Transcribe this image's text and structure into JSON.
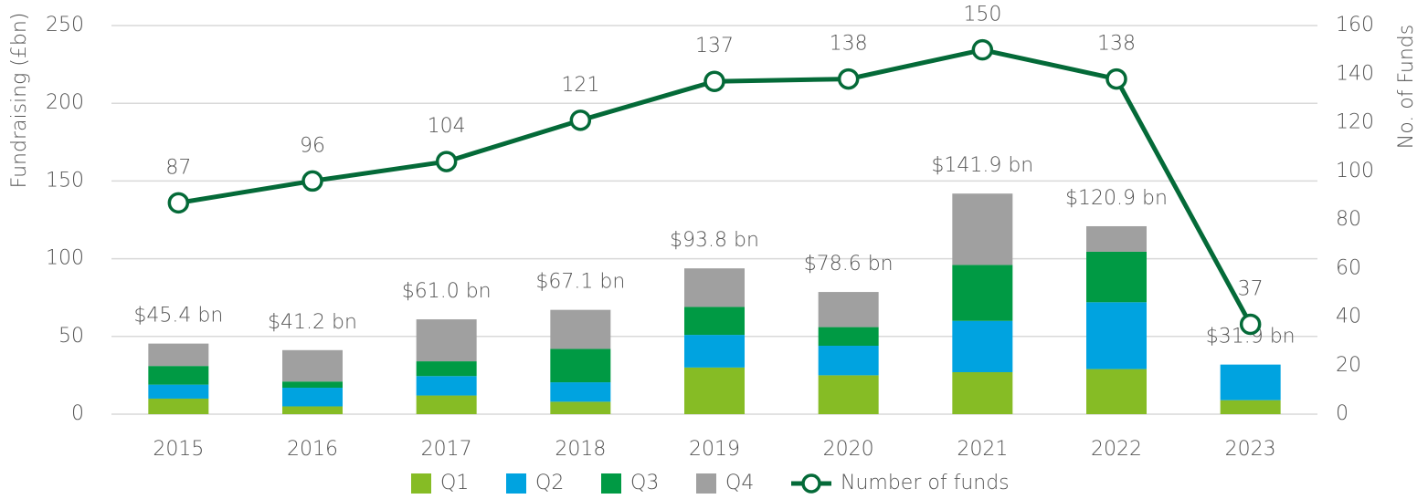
{
  "chart_data": {
    "type": "bar",
    "y_label": "Fundraising (£bn)",
    "y2_label": "No. of Funds",
    "categories": [
      "2015",
      "2016",
      "2017",
      "2018",
      "2019",
      "2020",
      "2021",
      "2022",
      "2023"
    ],
    "series": [
      {
        "name": "Q1",
        "color": "#86bc25",
        "values": [
          10,
          5,
          12,
          8,
          30,
          25,
          27,
          29,
          9
        ]
      },
      {
        "name": "Q2",
        "color": "#00a3e0",
        "values": [
          9,
          12,
          12.5,
          12.5,
          21,
          19,
          33,
          43,
          22.9
        ]
      },
      {
        "name": "Q3",
        "color": "#009a44",
        "values": [
          12,
          4,
          9.5,
          21.5,
          18,
          12,
          36,
          32.5,
          0
        ]
      },
      {
        "name": "Q4",
        "color": "#a0a0a0",
        "values": [
          14.4,
          20.2,
          27,
          25.1,
          24.8,
          22.6,
          45.9,
          16.4,
          0
        ]
      },
      {
        "name": "Number of funds",
        "type": "line",
        "axis": "y2",
        "color": "#046a38",
        "values": [
          87,
          96,
          104,
          121,
          137,
          138,
          150,
          138,
          37
        ]
      }
    ],
    "totals": [
      45.4,
      41.2,
      61.0,
      67.1,
      93.8,
      78.6,
      141.9,
      120.9,
      31.9
    ],
    "total_labels": [
      "$45.4 bn",
      "$41.2 bn",
      "$61.0 bn",
      "$67.1 bn",
      "$93.8 bn",
      "$78.6 bn",
      "$141.9 bn",
      "$120.9 bn",
      "$31.9 bn"
    ],
    "ylim": [
      0,
      250
    ],
    "yticks": [
      0,
      50,
      100,
      150,
      200,
      250
    ],
    "y2lim": [
      0,
      160
    ],
    "y2ticks": [
      0,
      20,
      40,
      60,
      80,
      100,
      120,
      140,
      160
    ],
    "grid": true
  }
}
